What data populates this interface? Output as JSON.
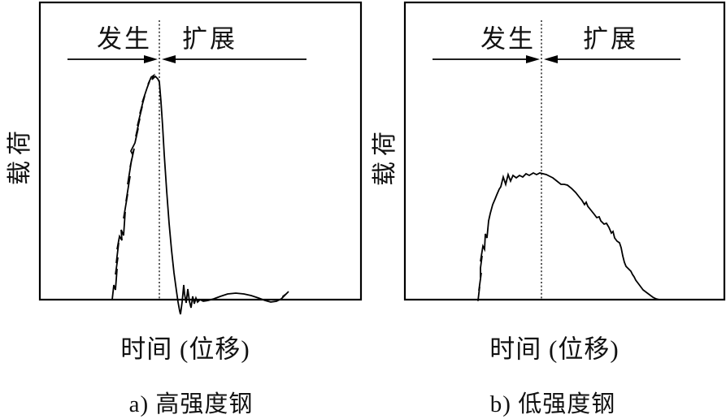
{
  "chart_data": [
    {
      "type": "line",
      "title": "a) 高强度钢",
      "xlabel": "时间 (位移)",
      "ylabel": "载荷",
      "phase_labels": {
        "initiation": "发生",
        "propagation": "扩展"
      },
      "divider_x": 147,
      "xlim": [
        0,
        395
      ],
      "ylim": [
        0,
        366
      ],
      "axis_units": "arbitrary (schematic, no numeric ticks)",
      "grid": false,
      "legend": false,
      "series": [
        {
          "name": "载荷曲线",
          "points": [
            [
              89,
              0
            ],
            [
              91,
              18
            ],
            [
              93,
              12
            ],
            [
              95,
              38
            ],
            [
              93,
              31
            ],
            [
              96,
              52
            ],
            [
              94,
              45
            ],
            [
              97,
              70
            ],
            [
              95,
              62
            ],
            [
              98,
              78
            ],
            [
              101,
              73
            ],
            [
              100,
              86
            ],
            [
              103,
              79
            ],
            [
              105,
              108
            ],
            [
              103,
              100
            ],
            [
              108,
              130
            ],
            [
              106,
              121
            ],
            [
              111,
              152
            ],
            [
              108,
              142
            ],
            [
              113,
              173
            ],
            [
              111,
              163
            ],
            [
              116,
              186
            ],
            [
              114,
              179
            ],
            [
              112,
              183
            ],
            [
              117,
              193
            ],
            [
              121,
              211
            ],
            [
              118,
              201
            ],
            [
              123,
              223
            ],
            [
              120,
              214
            ],
            [
              126,
              238
            ],
            [
              123,
              229
            ],
            [
              129,
              251
            ],
            [
              126,
              243
            ],
            [
              132,
              261
            ],
            [
              135,
              269
            ],
            [
              133,
              265
            ],
            [
              137,
              274
            ],
            [
              140,
              276
            ],
            [
              138,
              271
            ],
            [
              142,
              275
            ],
            [
              145,
              272
            ],
            [
              147,
              268
            ],
            [
              149,
              244
            ],
            [
              151,
              214
            ],
            [
              153,
              179
            ],
            [
              156,
              134
            ],
            [
              159,
              94
            ],
            [
              162,
              61
            ],
            [
              165,
              33
            ],
            [
              168,
              11
            ],
            [
              170,
              -3
            ],
            [
              172,
              -14
            ],
            [
              173,
              -18
            ],
            [
              175,
              -3
            ],
            [
              177,
              18
            ],
            [
              178,
              7
            ],
            [
              180,
              -4
            ],
            [
              182,
              13
            ],
            [
              184,
              -2
            ],
            [
              186,
              -10
            ],
            [
              188,
              4
            ],
            [
              190,
              -5
            ],
            [
              192,
              2
            ],
            [
              194,
              -3
            ],
            [
              197,
              0
            ],
            [
              201,
              -2
            ],
            [
              207,
              -1
            ],
            [
              214,
              1
            ],
            [
              222,
              4
            ],
            [
              231,
              7
            ],
            [
              241,
              8
            ],
            [
              251,
              7
            ],
            [
              260,
              5
            ],
            [
              269,
              2
            ],
            [
              277,
              -1
            ],
            [
              284,
              -3
            ],
            [
              291,
              -2
            ],
            [
              297,
              1
            ],
            [
              302,
              6
            ],
            [
              306,
              10
            ],
            [
              303,
              7
            ],
            [
              299,
              4
            ]
          ]
        }
      ]
    },
    {
      "type": "line",
      "title": "b) 低强度钢",
      "xlabel": "时间 (位移)",
      "ylabel": "载荷",
      "phase_labels": {
        "initiation": "发生",
        "propagation": "扩展"
      },
      "divider_x": 168,
      "xlim": [
        0,
        393
      ],
      "ylim": [
        0,
        366
      ],
      "axis_units": "arbitrary (schematic, no numeric ticks)",
      "grid": false,
      "legend": false,
      "series": [
        {
          "name": "载荷曲线",
          "points": [
            [
              90,
              -1
            ],
            [
              92,
              16
            ],
            [
              91,
              11
            ],
            [
              94,
              33
            ],
            [
              93,
              27
            ],
            [
              93,
              39
            ],
            [
              95,
              54
            ],
            [
              93,
              47
            ],
            [
              96,
              66
            ],
            [
              98,
              62
            ],
            [
              99,
              81
            ],
            [
              101,
              76
            ],
            [
              103,
              97
            ],
            [
              105,
              106
            ],
            [
              108,
              117
            ],
            [
              111,
              124
            ],
            [
              113,
              129
            ],
            [
              116,
              136
            ],
            [
              118,
              139
            ],
            [
              121,
              151
            ],
            [
              124,
              142
            ],
            [
              127,
              154
            ],
            [
              130,
              146
            ],
            [
              133,
              153
            ],
            [
              137,
              150
            ],
            [
              141,
              153
            ],
            [
              145,
              151
            ],
            [
              149,
              155
            ],
            [
              153,
              153
            ],
            [
              158,
              156
            ],
            [
              162,
              154
            ],
            [
              166,
              156
            ],
            [
              170,
              155
            ],
            [
              174,
              154
            ],
            [
              178,
              152
            ],
            [
              182,
              150
            ],
            [
              187,
              146
            ],
            [
              192,
              142
            ],
            [
              196,
              142
            ],
            [
              200,
              141
            ],
            [
              205,
              137
            ],
            [
              210,
              132
            ],
            [
              214,
              127
            ],
            [
              218,
              122
            ],
            [
              221,
              117
            ],
            [
              223,
              120
            ],
            [
              225,
              115
            ],
            [
              229,
              110
            ],
            [
              233,
              105
            ],
            [
              236,
              101
            ],
            [
              239,
              102
            ],
            [
              241,
              97
            ],
            [
              245,
              93
            ],
            [
              248,
              94
            ],
            [
              251,
              89
            ],
            [
              254,
              82
            ],
            [
              256,
              84
            ],
            [
              258,
              76
            ],
            [
              261,
              72
            ],
            [
              264,
              70
            ],
            [
              266,
              64
            ],
            [
              268,
              54
            ],
            [
              270,
              46
            ],
            [
              272,
              41
            ],
            [
              275,
              38
            ],
            [
              278,
              35
            ],
            [
              280,
              31
            ],
            [
              282,
              28
            ],
            [
              284,
              24
            ],
            [
              287,
              20
            ],
            [
              290,
              16
            ],
            [
              293,
              12
            ],
            [
              297,
              9
            ],
            [
              301,
              6
            ],
            [
              305,
              3
            ],
            [
              309,
              1
            ],
            [
              313,
              0
            ]
          ]
        }
      ]
    }
  ]
}
